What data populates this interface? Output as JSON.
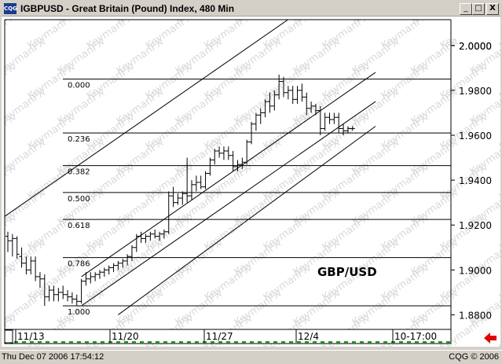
{
  "window": {
    "icon_label": "CQG",
    "title": "IGBPUSD - Great Britain (Pound) Index, 480 Min",
    "minimize_label": "_",
    "maximize_label": "□",
    "close_label": "X"
  },
  "chart_data": {
    "type": "candlestick",
    "symbol_label": "GBP/USD",
    "interval": "480 Min",
    "watermark": "KeymanFX",
    "y_ticks": [
      2.0,
      1.98,
      1.96,
      1.94,
      1.92,
      1.9,
      1.88
    ],
    "y_tick_labels": [
      "2.0000",
      "1.9800",
      "1.9600",
      "1.9400",
      "1.9200",
      "1.9000",
      "1.8800"
    ],
    "ylim": [
      1.8735,
      2.0115
    ],
    "x_labels": [
      "11/13",
      "11/20",
      "11/27",
      "12/4",
      "10-17:00"
    ],
    "fibonacci_levels": [
      {
        "label": "0.000",
        "price": 1.985
      },
      {
        "label": "0.236",
        "price": 1.961
      },
      {
        "label": "0.382",
        "price": 1.9465
      },
      {
        "label": "0.500",
        "price": 1.9345
      },
      {
        "label": "0.618",
        "price": 1.9225
      },
      {
        "label": "0.786",
        "price": 1.9055
      },
      {
        "label": "1.000",
        "price": 1.884
      }
    ],
    "bars": [
      {
        "o": 1.915,
        "h": 1.917,
        "l": 1.908,
        "c": 1.913
      },
      {
        "o": 1.913,
        "h": 1.916,
        "l": 1.906,
        "c": 1.914
      },
      {
        "o": 1.914,
        "h": 1.915,
        "l": 1.905,
        "c": 1.907
      },
      {
        "o": 1.906,
        "h": 1.91,
        "l": 1.901,
        "c": 1.903
      },
      {
        "o": 1.903,
        "h": 1.906,
        "l": 1.898,
        "c": 1.9
      },
      {
        "o": 1.9,
        "h": 1.906,
        "l": 1.898,
        "c": 1.904
      },
      {
        "o": 1.904,
        "h": 1.906,
        "l": 1.895,
        "c": 1.897
      },
      {
        "o": 1.897,
        "h": 1.899,
        "l": 1.892,
        "c": 1.896
      },
      {
        "o": 1.896,
        "h": 1.898,
        "l": 1.884,
        "c": 1.888
      },
      {
        "o": 1.888,
        "h": 1.893,
        "l": 1.886,
        "c": 1.891
      },
      {
        "o": 1.891,
        "h": 1.893,
        "l": 1.886,
        "c": 1.889
      },
      {
        "o": 1.889,
        "h": 1.892,
        "l": 1.886,
        "c": 1.89
      },
      {
        "o": 1.89,
        "h": 1.893,
        "l": 1.887,
        "c": 1.889
      },
      {
        "o": 1.889,
        "h": 1.891,
        "l": 1.886,
        "c": 1.888
      },
      {
        "o": 1.888,
        "h": 1.89,
        "l": 1.885,
        "c": 1.887
      },
      {
        "o": 1.887,
        "h": 1.889,
        "l": 1.884,
        "c": 1.886
      },
      {
        "o": 1.886,
        "h": 1.896,
        "l": 1.885,
        "c": 1.895
      },
      {
        "o": 1.895,
        "h": 1.899,
        "l": 1.893,
        "c": 1.896
      },
      {
        "o": 1.896,
        "h": 1.899,
        "l": 1.894,
        "c": 1.897
      },
      {
        "o": 1.897,
        "h": 1.899,
        "l": 1.895,
        "c": 1.898
      },
      {
        "o": 1.898,
        "h": 1.9,
        "l": 1.896,
        "c": 1.899
      },
      {
        "o": 1.899,
        "h": 1.901,
        "l": 1.897,
        "c": 1.9
      },
      {
        "o": 1.9,
        "h": 1.902,
        "l": 1.898,
        "c": 1.901
      },
      {
        "o": 1.901,
        "h": 1.903,
        "l": 1.899,
        "c": 1.902
      },
      {
        "o": 1.902,
        "h": 1.904,
        "l": 1.9,
        "c": 1.903
      },
      {
        "o": 1.903,
        "h": 1.905,
        "l": 1.901,
        "c": 1.904
      },
      {
        "o": 1.904,
        "h": 1.907,
        "l": 1.902,
        "c": 1.906
      },
      {
        "o": 1.906,
        "h": 1.911,
        "l": 1.904,
        "c": 1.91
      },
      {
        "o": 1.91,
        "h": 1.916,
        "l": 1.908,
        "c": 1.915
      },
      {
        "o": 1.915,
        "h": 1.917,
        "l": 1.912,
        "c": 1.914
      },
      {
        "o": 1.914,
        "h": 1.916,
        "l": 1.912,
        "c": 1.915
      },
      {
        "o": 1.915,
        "h": 1.917,
        "l": 1.913,
        "c": 1.916
      },
      {
        "o": 1.916,
        "h": 1.918,
        "l": 1.914,
        "c": 1.915
      },
      {
        "o": 1.915,
        "h": 1.917,
        "l": 1.913,
        "c": 1.916
      },
      {
        "o": 1.916,
        "h": 1.918,
        "l": 1.914,
        "c": 1.917
      },
      {
        "o": 1.917,
        "h": 1.935,
        "l": 1.916,
        "c": 1.933
      },
      {
        "o": 1.933,
        "h": 1.937,
        "l": 1.928,
        "c": 1.93
      },
      {
        "o": 1.93,
        "h": 1.934,
        "l": 1.929,
        "c": 1.932
      },
      {
        "o": 1.932,
        "h": 1.935,
        "l": 1.929,
        "c": 1.934
      },
      {
        "o": 1.934,
        "h": 1.95,
        "l": 1.93,
        "c": 1.933
      },
      {
        "o": 1.933,
        "h": 1.94,
        "l": 1.931,
        "c": 1.938
      },
      {
        "o": 1.938,
        "h": 1.942,
        "l": 1.935,
        "c": 1.939
      },
      {
        "o": 1.939,
        "h": 1.942,
        "l": 1.936,
        "c": 1.937
      },
      {
        "o": 1.937,
        "h": 1.944,
        "l": 1.936,
        "c": 1.943
      },
      {
        "o": 1.943,
        "h": 1.95,
        "l": 1.942,
        "c": 1.949
      },
      {
        "o": 1.949,
        "h": 1.954,
        "l": 1.947,
        "c": 1.953
      },
      {
        "o": 1.953,
        "h": 1.955,
        "l": 1.95,
        "c": 1.952
      },
      {
        "o": 1.952,
        "h": 1.955,
        "l": 1.949,
        "c": 1.953
      },
      {
        "o": 1.953,
        "h": 1.955,
        "l": 1.949,
        "c": 1.951
      },
      {
        "o": 1.951,
        "h": 1.953,
        "l": 1.944,
        "c": 1.946
      },
      {
        "o": 1.946,
        "h": 1.949,
        "l": 1.944,
        "c": 1.947
      },
      {
        "o": 1.947,
        "h": 1.95,
        "l": 1.945,
        "c": 1.948
      },
      {
        "o": 1.948,
        "h": 1.958,
        "l": 1.947,
        "c": 1.957
      },
      {
        "o": 1.957,
        "h": 1.966,
        "l": 1.956,
        "c": 1.965
      },
      {
        "o": 1.965,
        "h": 1.97,
        "l": 1.962,
        "c": 1.969
      },
      {
        "o": 1.969,
        "h": 1.972,
        "l": 1.965,
        "c": 1.97
      },
      {
        "o": 1.97,
        "h": 1.976,
        "l": 1.968,
        "c": 1.975
      },
      {
        "o": 1.975,
        "h": 1.979,
        "l": 1.97,
        "c": 1.973
      },
      {
        "o": 1.973,
        "h": 1.98,
        "l": 1.971,
        "c": 1.978
      },
      {
        "o": 1.978,
        "h": 1.987,
        "l": 1.976,
        "c": 1.984
      },
      {
        "o": 1.984,
        "h": 1.986,
        "l": 1.977,
        "c": 1.979
      },
      {
        "o": 1.979,
        "h": 1.982,
        "l": 1.976,
        "c": 1.98
      },
      {
        "o": 1.98,
        "h": 1.982,
        "l": 1.974,
        "c": 1.976
      },
      {
        "o": 1.976,
        "h": 1.982,
        "l": 1.974,
        "c": 1.98
      },
      {
        "o": 1.98,
        "h": 1.983,
        "l": 1.975,
        "c": 1.977
      },
      {
        "o": 1.977,
        "h": 1.979,
        "l": 1.969,
        "c": 1.972
      },
      {
        "o": 1.972,
        "h": 1.975,
        "l": 1.97,
        "c": 1.973
      },
      {
        "o": 1.973,
        "h": 1.974,
        "l": 1.969,
        "c": 1.971
      },
      {
        "o": 1.971,
        "h": 1.973,
        "l": 1.96,
        "c": 1.963
      },
      {
        "o": 1.963,
        "h": 1.97,
        "l": 1.962,
        "c": 1.968
      },
      {
        "o": 1.968,
        "h": 1.97,
        "l": 1.965,
        "c": 1.967
      },
      {
        "o": 1.967,
        "h": 1.97,
        "l": 1.965,
        "c": 1.968
      },
      {
        "o": 1.968,
        "h": 1.97,
        "l": 1.961,
        "c": 1.963
      },
      {
        "o": 1.963,
        "h": 1.965,
        "l": 1.96,
        "c": 1.962
      },
      {
        "o": 1.962,
        "h": 1.964,
        "l": 1.961,
        "c": 1.963
      },
      {
        "o": 1.963,
        "h": 1.964,
        "l": 1.962,
        "c": 1.963
      }
    ],
    "trend_channel": [
      {
        "start": {
          "bar": -2,
          "price": 1.922
        },
        "end": {
          "bar": 62,
          "price": 2.013
        }
      },
      {
        "start": {
          "bar": 16,
          "price": 1.897
        },
        "end": {
          "bar": 80,
          "price": 1.988
        }
      },
      {
        "start": {
          "bar": 16,
          "price": 1.884
        },
        "end": {
          "bar": 80,
          "price": 1.975
        }
      },
      {
        "start": {
          "bar": 24,
          "price": 1.88
        },
        "end": {
          "bar": 80,
          "price": 1.964
        }
      }
    ]
  },
  "status": {
    "datetime": "Thu Dec 07 2006 17:54:12",
    "copyright": "CQG © 2006"
  }
}
